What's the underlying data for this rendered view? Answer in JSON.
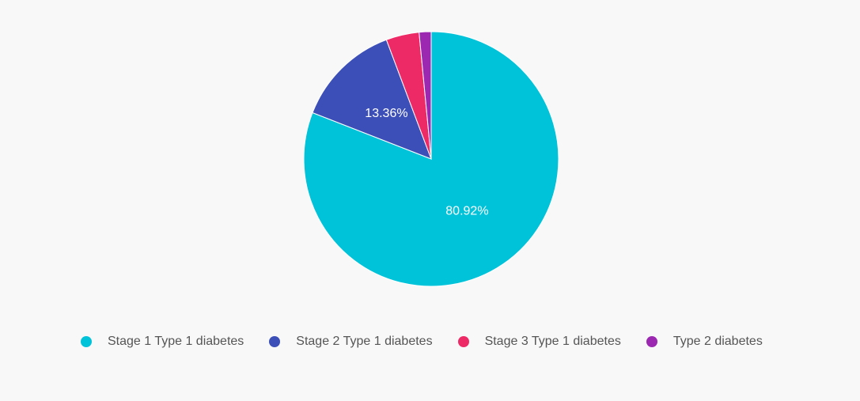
{
  "chart_data": {
    "type": "pie",
    "title": "",
    "start_angle_deg": 0,
    "direction": "clockwise",
    "legend_position": "bottom-left",
    "slices": [
      {
        "label": "Stage 1 Type 1 diabetes",
        "value": 80.92,
        "display": "80.92%",
        "color": "#00c3da"
      },
      {
        "label": "Stage 2 Type 1 diabetes",
        "value": 13.36,
        "display": "13.36%",
        "color": "#3c4fb8"
      },
      {
        "label": "Stage 3 Type 1 diabetes",
        "value": 4.2,
        "display": "",
        "color": "#ee2a66"
      },
      {
        "label": "Type 2 diabetes",
        "value": 1.52,
        "display": "",
        "color": "#9c27b0"
      }
    ]
  }
}
